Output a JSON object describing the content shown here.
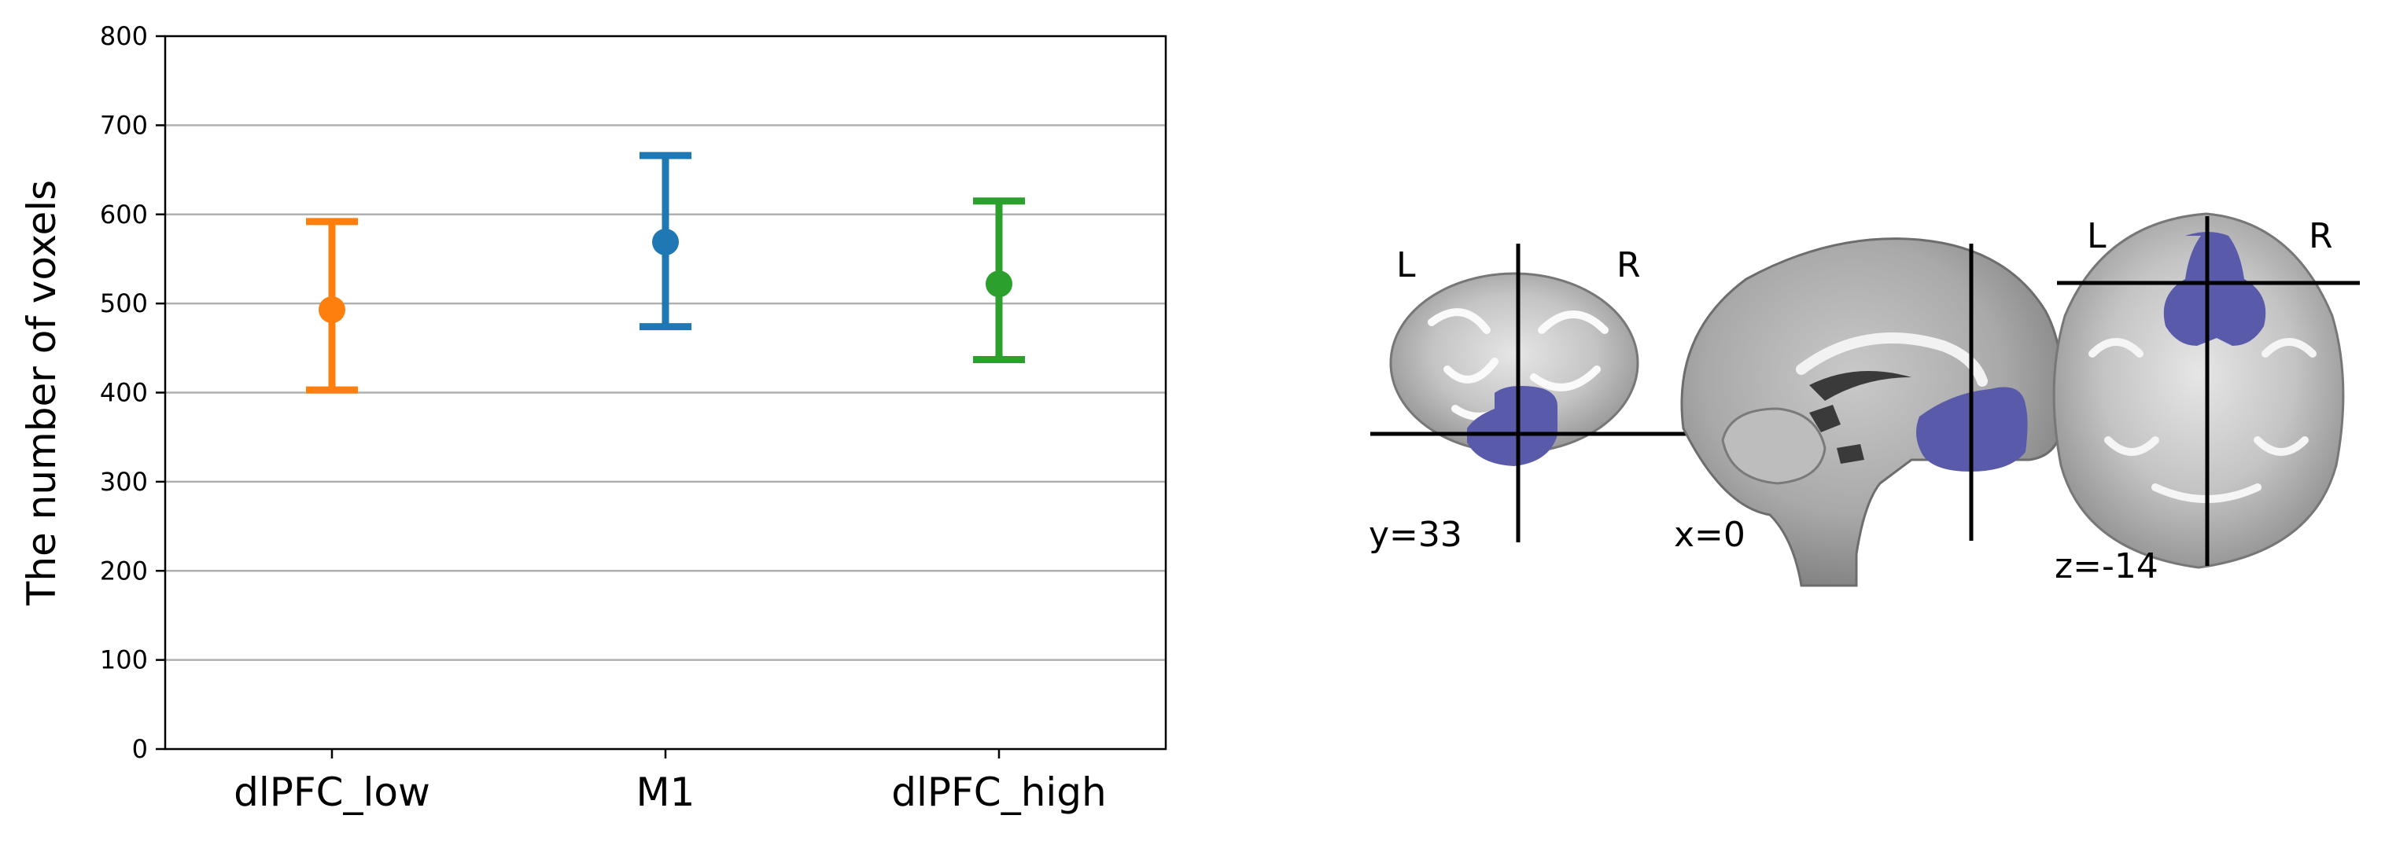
{
  "chart_data": {
    "type": "scatter",
    "subtype": "point-with-error-bars",
    "ylabel": "The number of voxels",
    "ylim": [
      0,
      800
    ],
    "yticks": [
      "0",
      "100",
      "200",
      "300",
      "400",
      "500",
      "600",
      "700",
      "800"
    ],
    "grid": "y-major",
    "legend": "none",
    "categories": [
      "dlPFC_low",
      "M1",
      "dlPFC_high"
    ],
    "series": [
      {
        "category": "dlPFC_low",
        "value": 493,
        "lower": 403,
        "upper": 592,
        "color": "#ff7f0e"
      },
      {
        "category": "M1",
        "value": 569,
        "lower": 474,
        "upper": 666,
        "color": "#1f77b4"
      },
      {
        "category": "dlPFC_high",
        "value": 522,
        "lower": 437,
        "upper": 615,
        "color": "#2ca02c"
      }
    ]
  },
  "brain_views": {
    "overlay_color": "#5a5aaa",
    "coronal": {
      "coord_label": "y=33",
      "left_label": "L",
      "right_label": "R"
    },
    "sagittal": {
      "coord_label": "x=0"
    },
    "axial": {
      "coord_label": "z=-14",
      "left_label": "L",
      "right_label": "R"
    }
  }
}
